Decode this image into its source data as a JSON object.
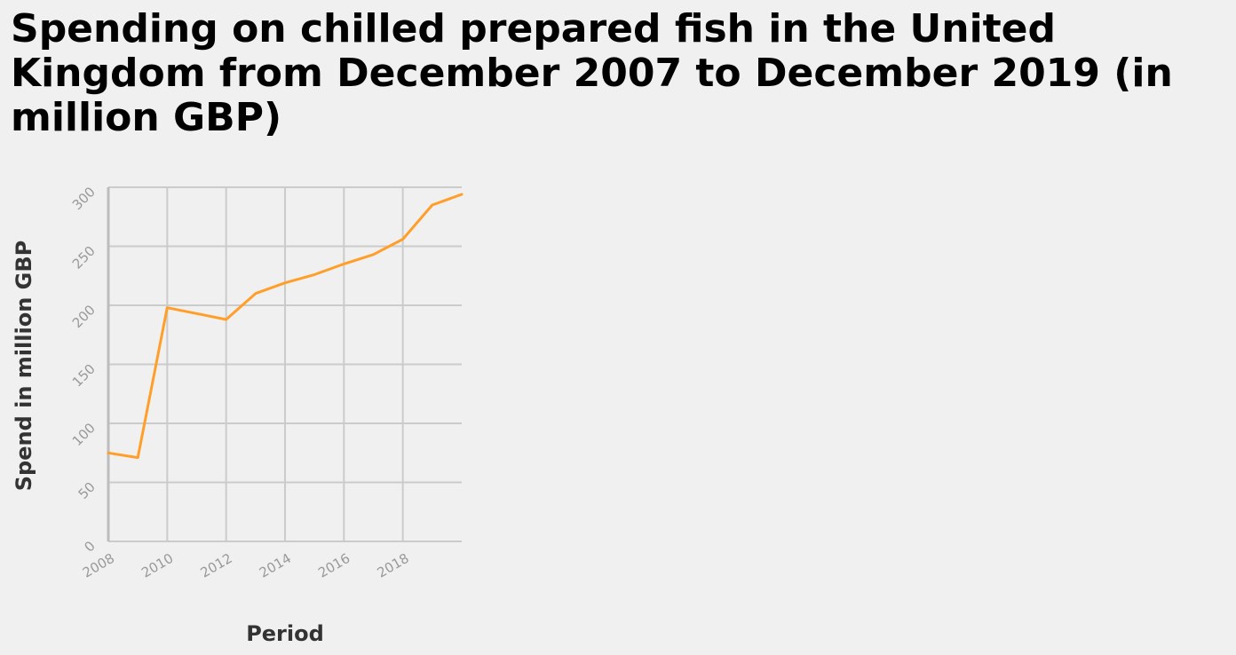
{
  "chart_data": {
    "type": "line",
    "title": "Spending on chilled prepared fish in the United Kingdom from December 2007 to December 2019 (in million GBP)",
    "xlabel": "Period",
    "ylabel": "Spend in million GBP",
    "x_ticks": [
      2008,
      2010,
      2012,
      2014,
      2016,
      2018
    ],
    "y_ticks": [
      0,
      50,
      100,
      150,
      200,
      250,
      300
    ],
    "xlim": [
      2008,
      2020
    ],
    "ylim": [
      0,
      300
    ],
    "grid": true,
    "legend": "none",
    "series": [
      {
        "color": "#ff9f2a",
        "x": [
          2008,
          2009,
          2010,
          2011,
          2012,
          2013,
          2014,
          2015,
          2016,
          2017,
          2018,
          2019,
          2020
        ],
        "values": [
          75,
          71,
          198,
          193,
          188,
          210,
          219,
          226,
          235,
          243,
          256,
          285,
          294
        ]
      }
    ]
  }
}
